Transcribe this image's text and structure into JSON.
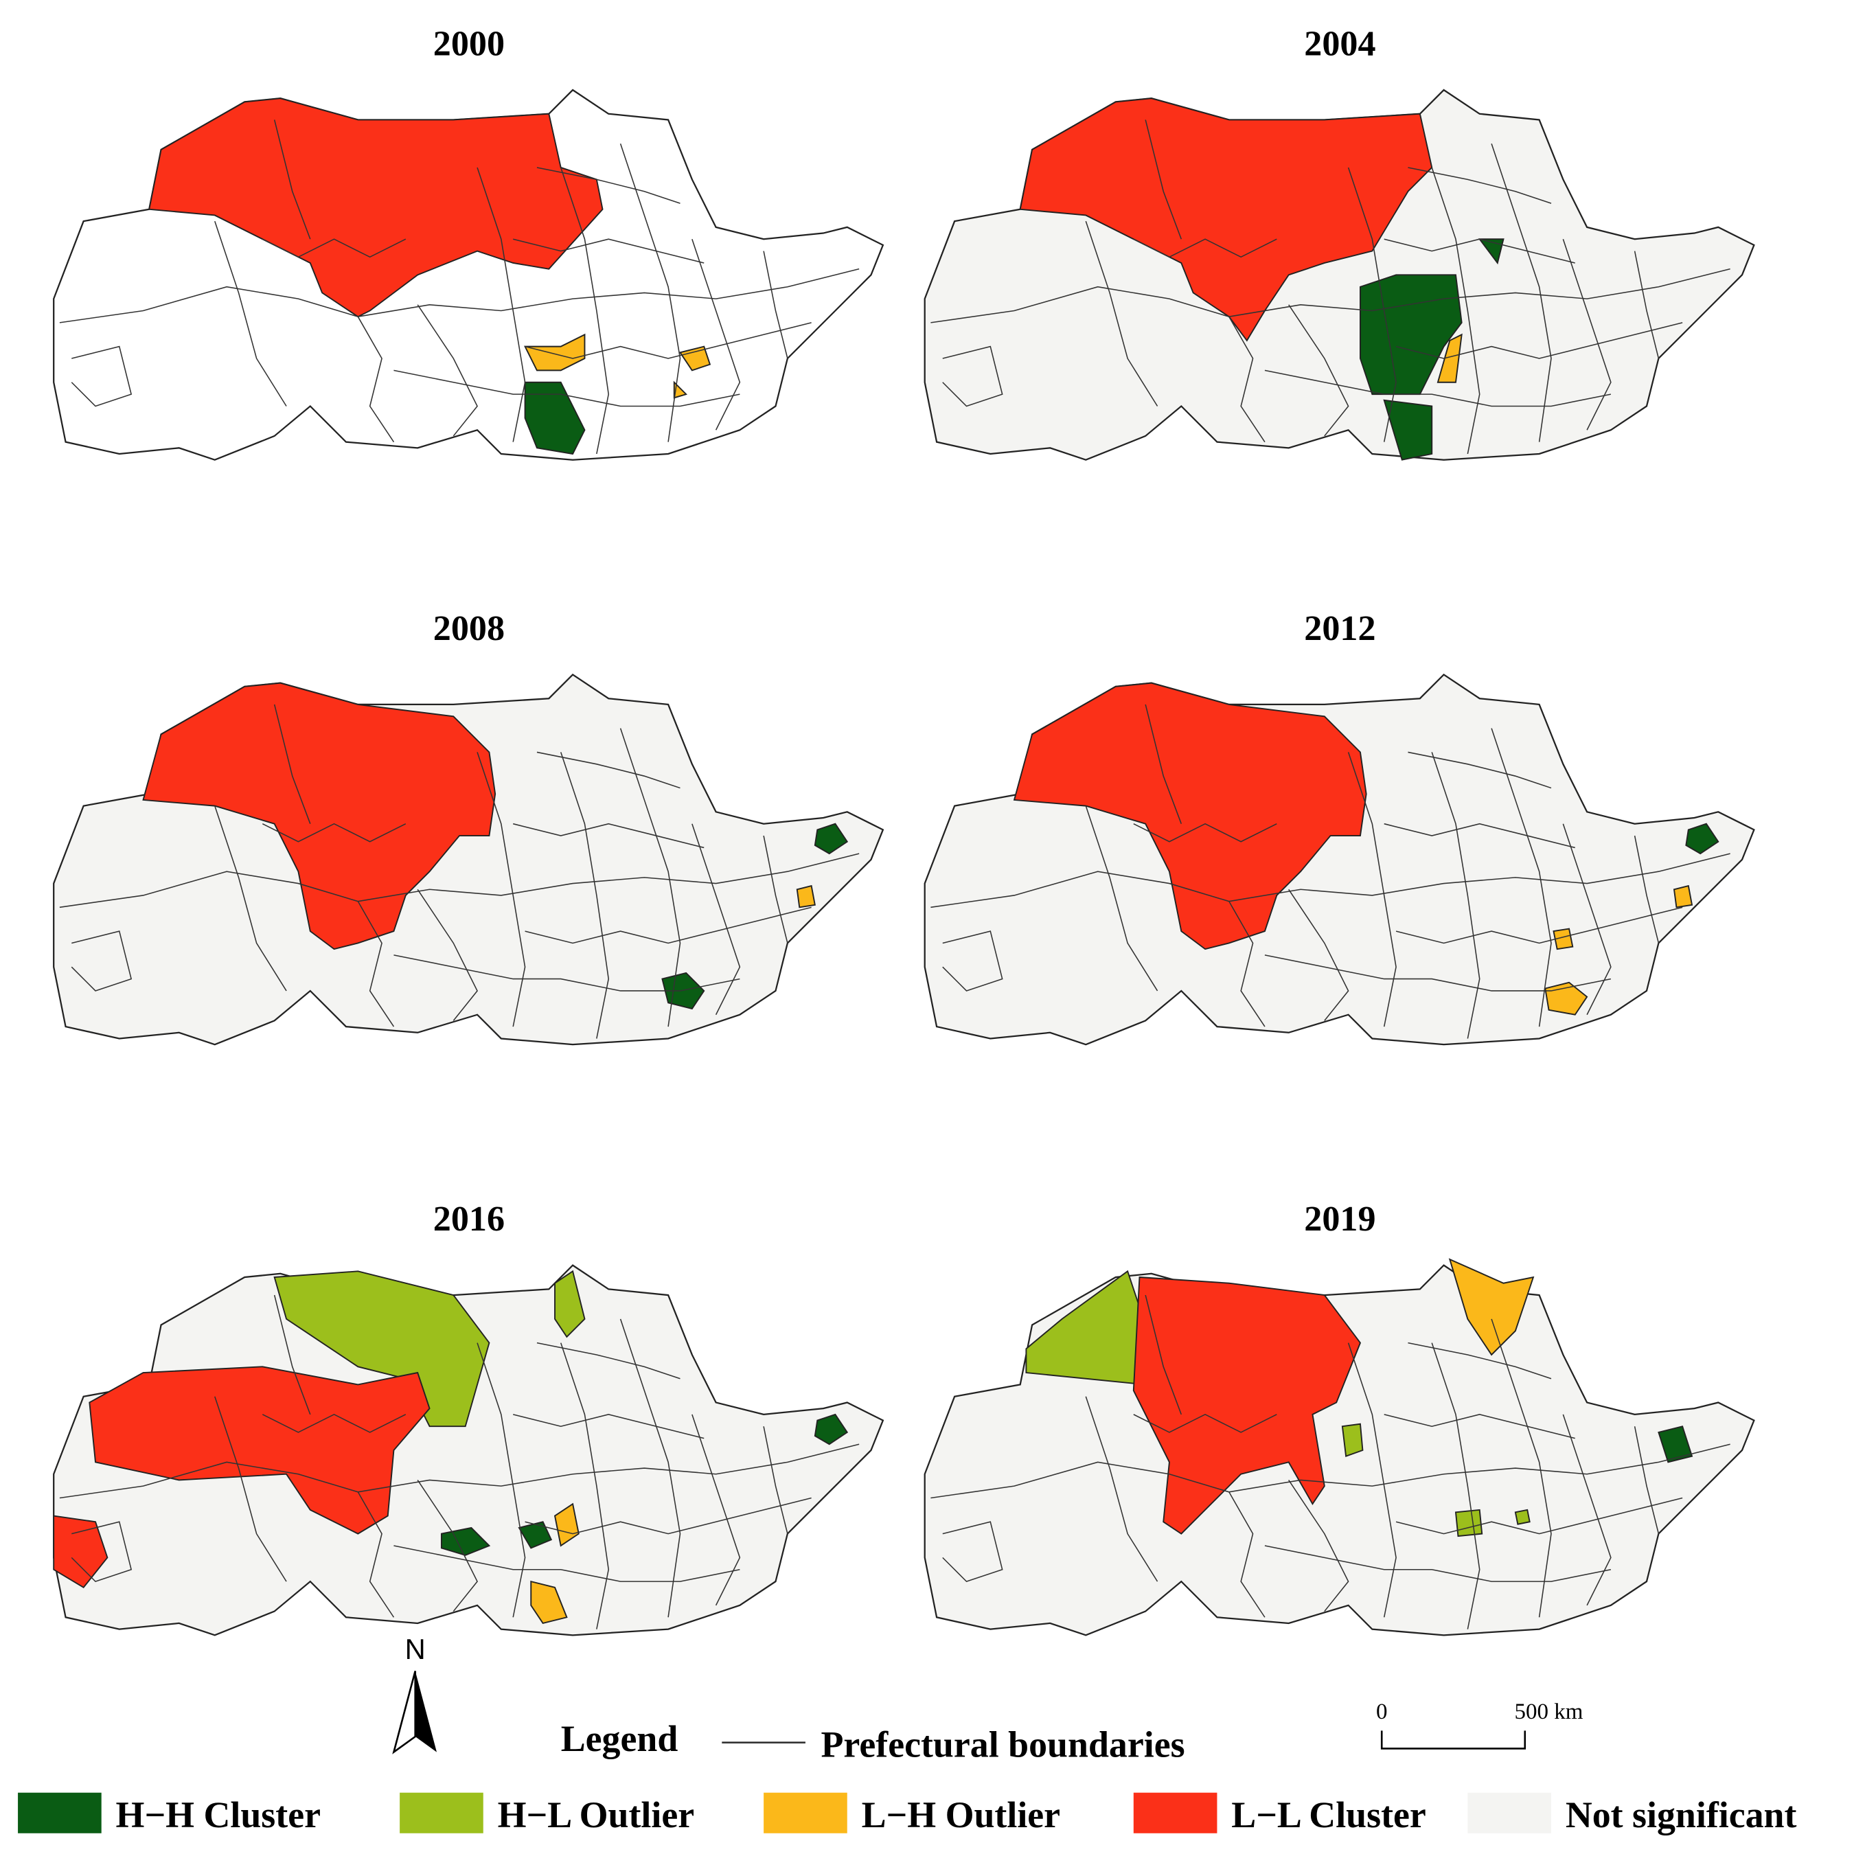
{
  "panels": [
    {
      "title": "2000"
    },
    {
      "title": "2004"
    },
    {
      "title": "2008"
    },
    {
      "title": "2012"
    },
    {
      "title": "2016"
    },
    {
      "title": "2019"
    }
  ],
  "north_label": "N",
  "legend": {
    "title": "Legend",
    "boundary_label": "Prefectural boundaries",
    "items": [
      {
        "label": "H−H Cluster",
        "color": "#0a5c14"
      },
      {
        "label": "H−L Outlier",
        "color": "#9cbf1c"
      },
      {
        "label": "L−H Outlier",
        "color": "#fbb81a"
      },
      {
        "label": "L−L Cluster",
        "color": "#fb3018"
      },
      {
        "label": "Not significant",
        "color": "#f4f4f2"
      }
    ]
  },
  "scale_bar": {
    "start_label": "0",
    "end_label": "500 km"
  }
}
